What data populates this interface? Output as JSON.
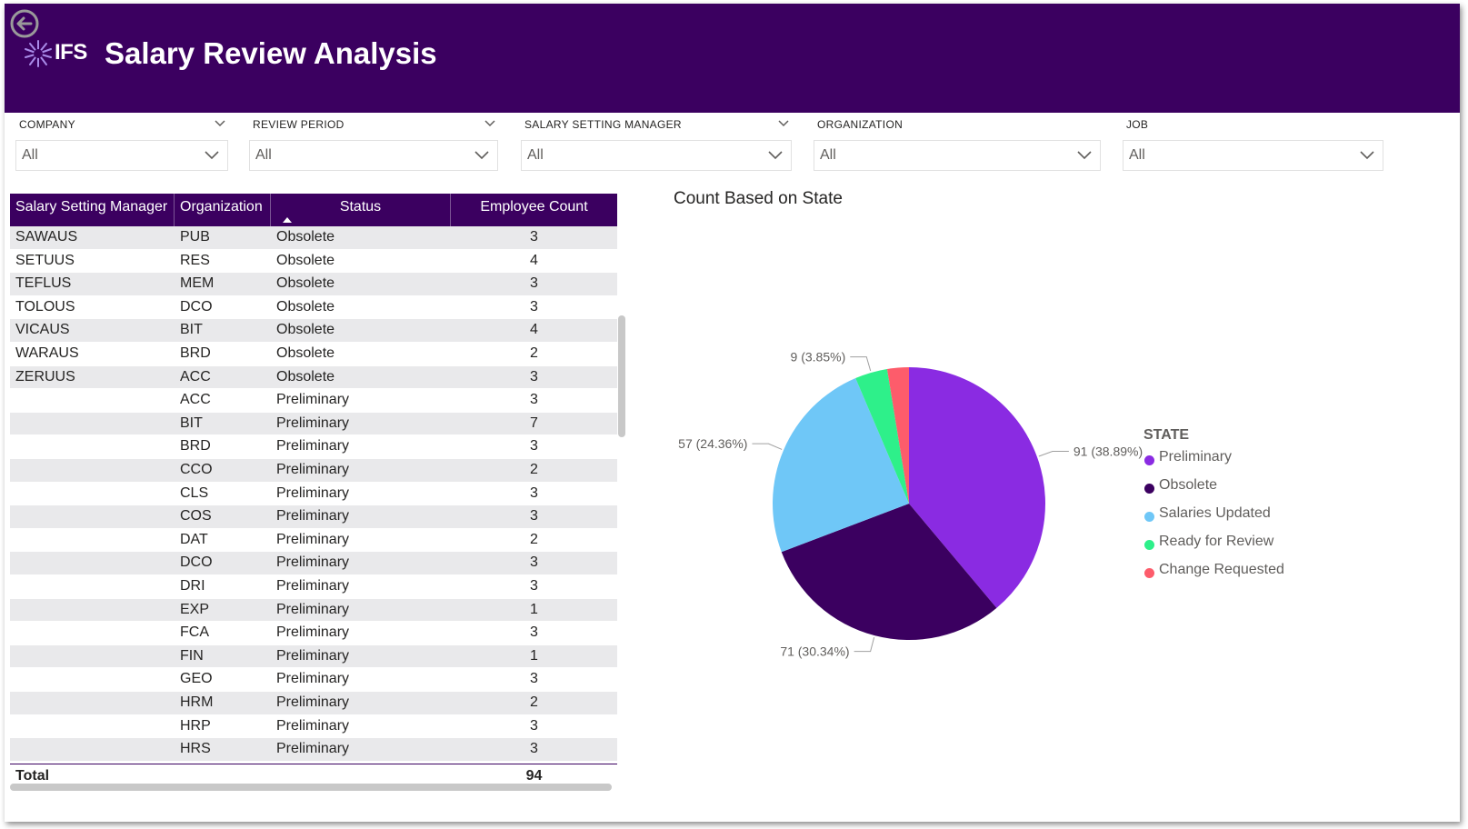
{
  "header": {
    "title": "Salary Review Analysis",
    "logo_text": "IFS",
    "background": "#3b0060"
  },
  "filters": [
    {
      "label": "COMPANY",
      "value": "All"
    },
    {
      "label": "REVIEW PERIOD",
      "value": "All"
    },
    {
      "label": "SALARY SETTING MANAGER",
      "value": "All"
    },
    {
      "label": "ORGANIZATION",
      "value": "All"
    },
    {
      "label": "JOB",
      "value": "All"
    }
  ],
  "table": {
    "columns": [
      "Salary Setting Manager",
      "Organization",
      "Status",
      "Employee Count"
    ],
    "sort_column": "Status",
    "rows": [
      [
        "SAWAUS",
        "PUB",
        "Obsolete",
        "3"
      ],
      [
        "SETUUS",
        "RES",
        "Obsolete",
        "4"
      ],
      [
        "TEFLUS",
        "MEM",
        "Obsolete",
        "3"
      ],
      [
        "TOLOUS",
        "DCO",
        "Obsolete",
        "3"
      ],
      [
        "VICAUS",
        "BIT",
        "Obsolete",
        "4"
      ],
      [
        "WARAUS",
        "BRD",
        "Obsolete",
        "2"
      ],
      [
        "ZERUUS",
        "ACC",
        "Obsolete",
        "3"
      ],
      [
        "",
        "ACC",
        "Preliminary",
        "3"
      ],
      [
        "",
        "BIT",
        "Preliminary",
        "7"
      ],
      [
        "",
        "BRD",
        "Preliminary",
        "3"
      ],
      [
        "",
        "CCO",
        "Preliminary",
        "2"
      ],
      [
        "",
        "CLS",
        "Preliminary",
        "3"
      ],
      [
        "",
        "COS",
        "Preliminary",
        "3"
      ],
      [
        "",
        "DAT",
        "Preliminary",
        "2"
      ],
      [
        "",
        "DCO",
        "Preliminary",
        "3"
      ],
      [
        "",
        "DRI",
        "Preliminary",
        "3"
      ],
      [
        "",
        "EXP",
        "Preliminary",
        "1"
      ],
      [
        "",
        "FCA",
        "Preliminary",
        "3"
      ],
      [
        "",
        "FIN",
        "Preliminary",
        "1"
      ],
      [
        "",
        "GEO",
        "Preliminary",
        "3"
      ],
      [
        "",
        "HRM",
        "Preliminary",
        "2"
      ],
      [
        "",
        "HRP",
        "Preliminary",
        "3"
      ],
      [
        "",
        "HRS",
        "Preliminary",
        "3"
      ]
    ],
    "total_label": "Total",
    "total_value": "94"
  },
  "chart_data": {
    "type": "pie",
    "title": "Count Based on State",
    "legend_title": "STATE",
    "legend_position": "right",
    "slices": [
      {
        "name": "Preliminary",
        "value": 91,
        "label": "91 (38.89%)",
        "color": "#8a2be2"
      },
      {
        "name": "Obsolete",
        "value": 71,
        "label": "71 (30.34%)",
        "color": "#3b0060"
      },
      {
        "name": "Salaries Updated",
        "value": 57,
        "label": "57 (24.36%)",
        "color": "#6fc7f7"
      },
      {
        "name": "Ready for Review",
        "value": 9,
        "label": "9 (3.85%)",
        "color": "#2ef08a"
      },
      {
        "name": "Change Requested",
        "value": 6,
        "label": "",
        "color": "#fd5c6b"
      }
    ]
  }
}
